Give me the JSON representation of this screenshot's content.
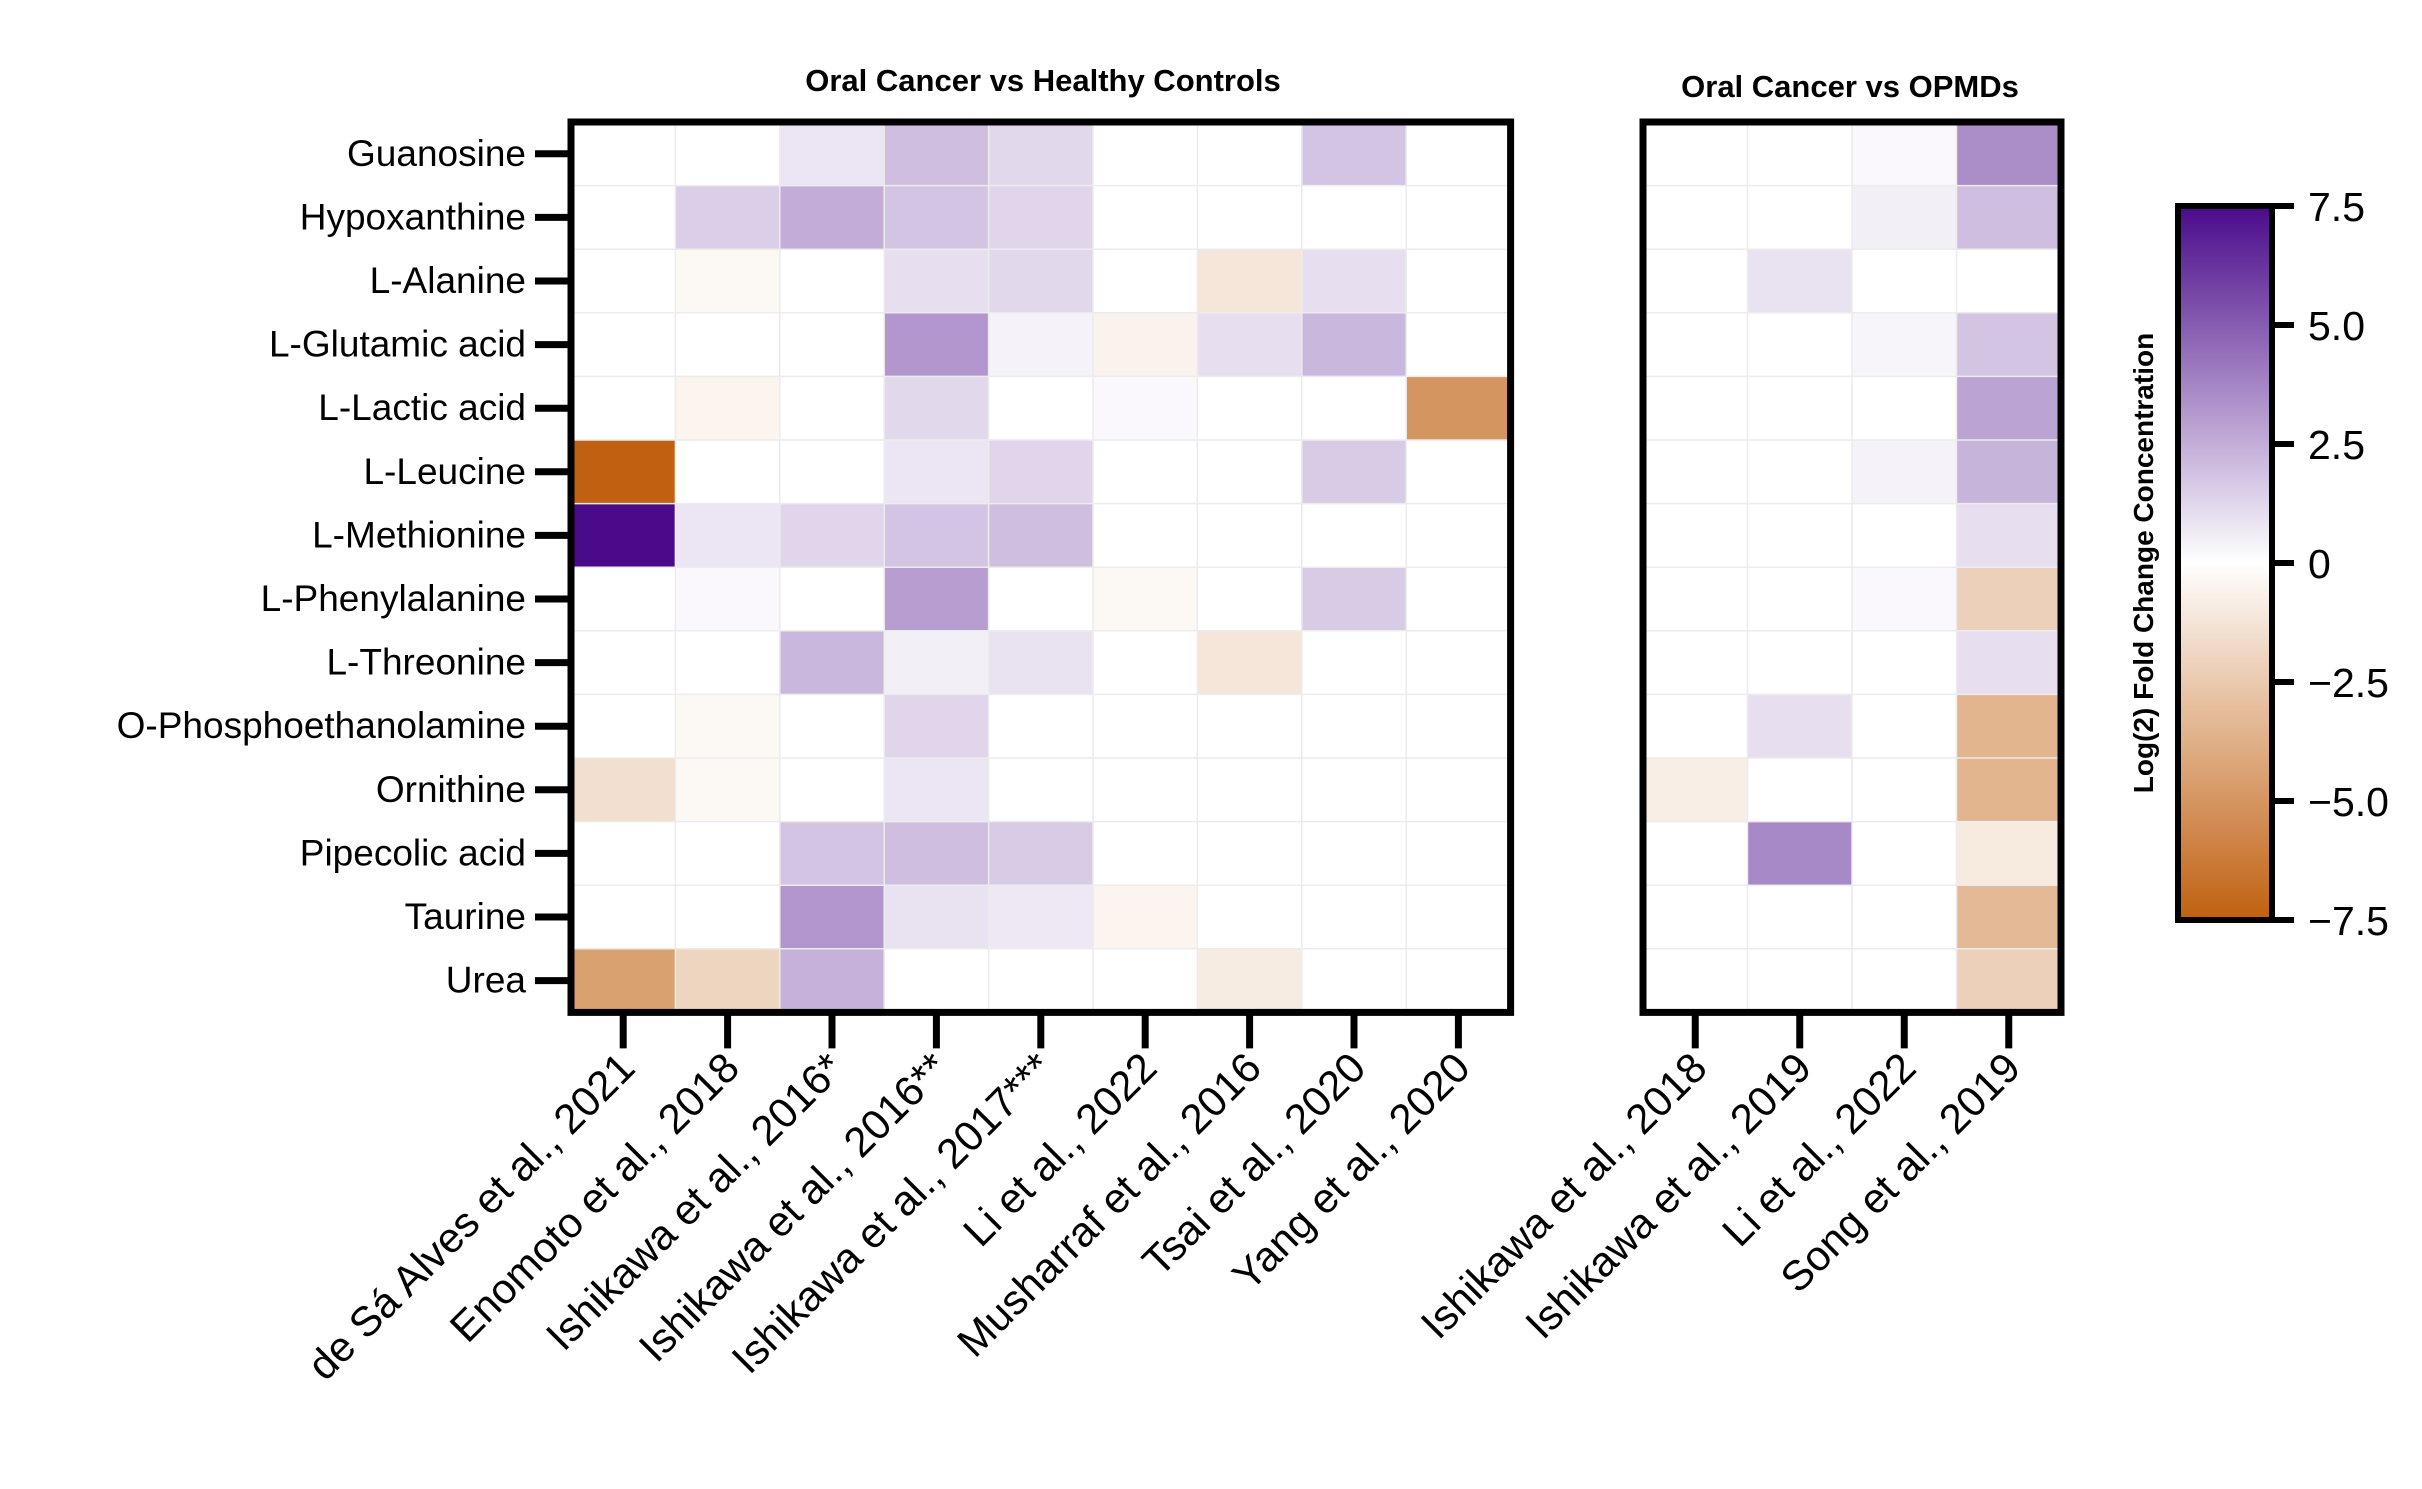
{
  "chart_data": {
    "type": "heatmap",
    "colorbar": {
      "title": "Log(2) Fold Change Concentration",
      "range": [
        -7.5,
        7.5
      ],
      "ticks": [
        7.5,
        5.0,
        2.5,
        0,
        -2.5,
        -5.0,
        -7.5
      ],
      "tick_labels": [
        "7.5",
        "5.0",
        "2.5",
        "0",
        "−2.5",
        "−5.0",
        "−7.5"
      ],
      "low_color": "#c06010",
      "mid_color": "#ffffff",
      "high_color": "#4a0a8a"
    },
    "rows": [
      "Guanosine",
      "Hypoxanthine",
      "L-Alanine",
      "L-Glutamic acid",
      "L-Lactic acid",
      "L-Leucine",
      "L-Methionine",
      "L-Phenylalanine",
      "L-Threonine",
      "O-Phosphoethanolamine",
      "Ornithine",
      "Pipecolic acid",
      "Taurine",
      "Urea"
    ],
    "panels": [
      {
        "title": "Oral Cancer vs Healthy Controls",
        "columns": [
          "de Sá Alves et al., 2021",
          "Enomoto et al., 2018",
          "Ishikawa et al., 2016*",
          "Ishikawa et al., 2016**",
          "Ishikawa et al., 2017***",
          "Li et al., 2022",
          "Musharraf et al., 2016",
          "Tsai et al., 2020",
          "Yang et al., 2020"
        ],
        "values": [
          [
            0,
            0,
            0.8,
            2.0,
            1.2,
            0,
            0,
            1.8,
            0
          ],
          [
            0,
            1.5,
            2.5,
            1.8,
            1.3,
            0,
            0,
            0,
            0
          ],
          [
            0,
            -0.3,
            0,
            1.0,
            1.2,
            0,
            -1.2,
            1.0,
            0
          ],
          [
            0,
            0,
            0,
            3.2,
            0.4,
            -0.6,
            1.0,
            2.2,
            0
          ],
          [
            0,
            -0.5,
            0,
            1.2,
            0,
            0.2,
            0,
            0,
            -5.0
          ],
          [
            -7.5,
            0,
            0,
            0.8,
            1.3,
            0,
            0,
            1.6,
            0
          ],
          [
            7.5,
            0.8,
            1.3,
            1.8,
            2.0,
            0,
            0,
            0,
            0
          ],
          [
            0,
            0.2,
            0,
            3.0,
            0,
            -0.3,
            0,
            1.6,
            0
          ],
          [
            0,
            0,
            2.2,
            0.5,
            0.9,
            0,
            -1.2,
            0,
            0
          ],
          [
            0,
            -0.3,
            0,
            1.3,
            0,
            0,
            0,
            0,
            0
          ],
          [
            -1.5,
            -0.3,
            0,
            0.8,
            0,
            0,
            0,
            0,
            0
          ],
          [
            0,
            0,
            1.8,
            2.0,
            1.6,
            0,
            0,
            0,
            0
          ],
          [
            0,
            0,
            3.2,
            0.9,
            0.7,
            -0.5,
            0,
            0,
            0
          ],
          [
            -4.5,
            -2.0,
            2.4,
            0,
            0,
            0,
            -0.9,
            0,
            0
          ]
        ]
      },
      {
        "title": "Oral Cancer vs OPMDs",
        "columns": [
          "Ishikawa et al., 2018",
          "Ishikawa et al., 2019",
          "Li et al., 2022",
          "Song et al., 2019"
        ],
        "values": [
          [
            0,
            0,
            0.2,
            3.5
          ],
          [
            0,
            0,
            0.5,
            2.0
          ],
          [
            0,
            0.9,
            0,
            0
          ],
          [
            0,
            0,
            0.3,
            1.8
          ],
          [
            0,
            0,
            0,
            2.8
          ],
          [
            0,
            0,
            0.4,
            2.3
          ],
          [
            0,
            0,
            0,
            1.0
          ],
          [
            0,
            0,
            0.2,
            -2.2
          ],
          [
            0,
            0,
            0,
            1.0
          ],
          [
            0,
            1.0,
            0,
            -3.5
          ],
          [
            -0.8,
            0,
            0,
            -3.5
          ],
          [
            0,
            3.6,
            0,
            -1.0
          ],
          [
            0,
            0,
            0,
            -3.3
          ],
          [
            0,
            0,
            0,
            -2.2
          ]
        ]
      }
    ]
  }
}
